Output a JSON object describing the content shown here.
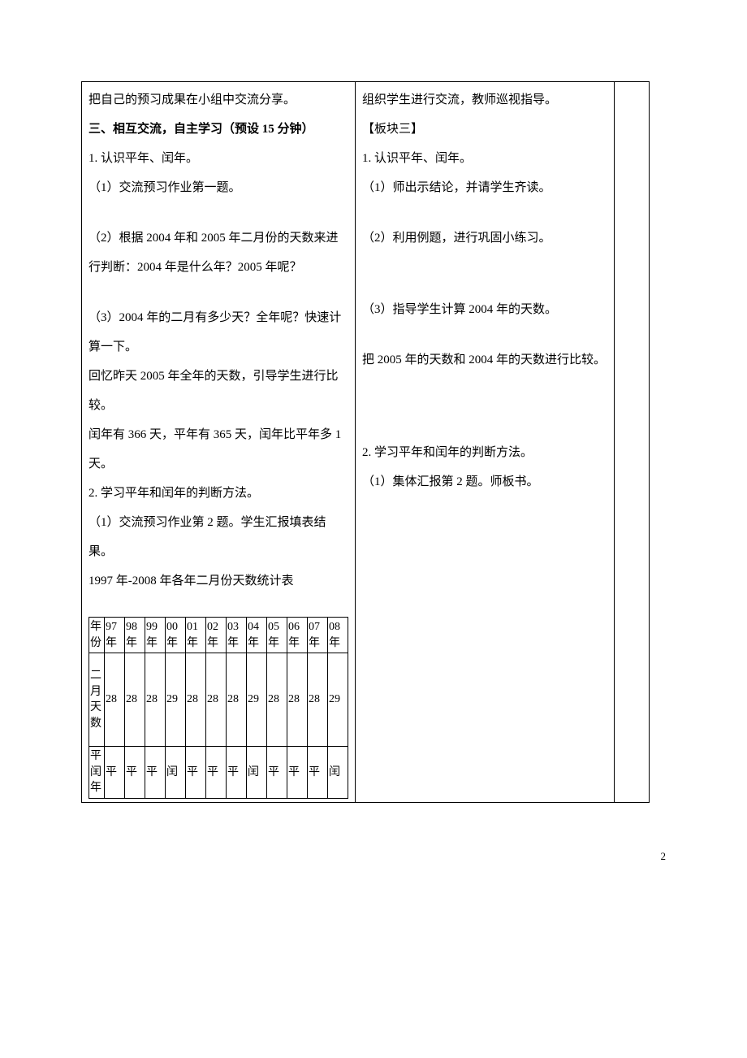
{
  "left": {
    "p1": "把自己的预习成果在小组中交流分享。",
    "h3": "三、相互交流，自主学习（预设 15 分钟）",
    "p2": "1. 认识平年、闰年。",
    "p3": "（1）交流预习作业第一题。",
    "p4": "（2）根据 2004 年和 2005 年二月份的天数来进行判断：2004 年是什么年？2005 年呢？",
    "p5": "（3）2004 年的二月有多少天？全年呢？快速计算一下。",
    "p6": "回忆昨天 2005 年全年的天数，引导学生进行比较。",
    "p7": "闰年有 366 天，平年有 365 天，闰年比平年多 1 天。",
    "p8": "2. 学习平年和闰年的判断方法。",
    "p9": "（1）交流预习作业第 2 题。学生汇报填表结果。",
    "p10": "1997 年-2008 年各年二月份天数统计表"
  },
  "right": {
    "p1": "组织学生进行交流，教师巡视指导。",
    "h3": "【板块三】",
    "p2": "1. 认识平年、闰年。",
    "p3": "（1）师出示结论，并请学生齐读。",
    "p4": "（2）利用例题，进行巩固小练习。",
    "p5": "（3）指导学生计算 2004 年的天数。",
    "p6": "把 2005 年的天数和 2004 年的天数进行比较。",
    "p8": "2. 学习平年和闰年的判断方法。",
    "p9": "（1）集体汇报第 2 题。师板书。"
  },
  "table": {
    "row_headers": [
      "年份",
      "二月天数",
      "平闰年"
    ],
    "years": [
      "97年",
      "98年",
      "99年",
      "00年",
      "01年",
      "02年",
      "03年",
      "04年",
      "05年",
      "06年",
      "07年",
      "08年"
    ],
    "days": [
      "28",
      "28",
      "28",
      "29",
      "28",
      "28",
      "28",
      "29",
      "28",
      "28",
      "28",
      "29"
    ],
    "type": [
      "平",
      "平",
      "平",
      "闰",
      "平",
      "平",
      "平",
      "闰",
      "平",
      "平",
      "平",
      "闰"
    ]
  },
  "page_number": "2"
}
